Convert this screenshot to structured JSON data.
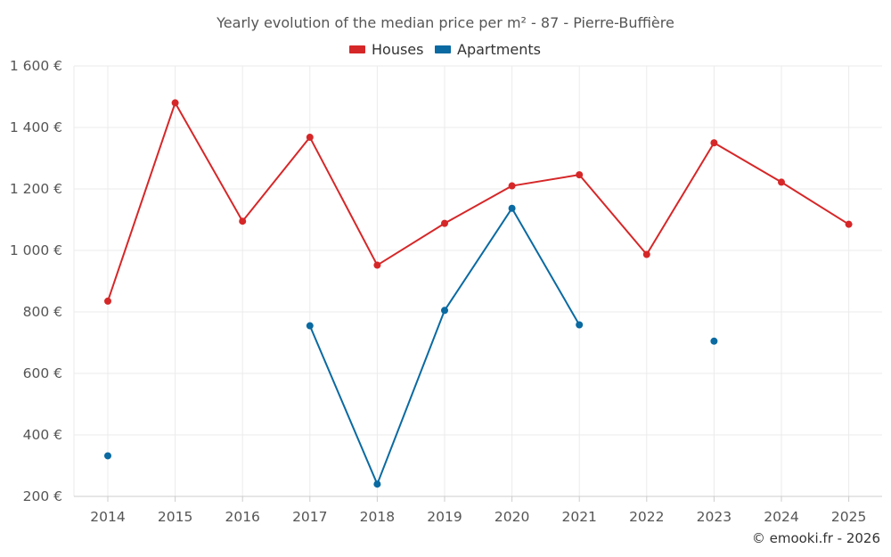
{
  "chart_data": {
    "type": "line",
    "title": "Yearly evolution of the median price per m² - 87 - Pierre-Buffière",
    "categories": [
      "2014",
      "2015",
      "2016",
      "2017",
      "2018",
      "2019",
      "2020",
      "2021",
      "2022",
      "2023",
      "2024",
      "2025"
    ],
    "ylim": [
      200,
      1600
    ],
    "yticks": [
      200,
      400,
      600,
      800,
      1000,
      1200,
      1400,
      1600
    ],
    "ytick_labels": [
      "200 €",
      "400 €",
      "600 €",
      "800 €",
      "1 000 €",
      "1 200 €",
      "1 400 €",
      "1 600 €"
    ],
    "legend_position": "top-center",
    "grid": true,
    "series": [
      {
        "name": "Houses",
        "color": "#d62728",
        "values": [
          835,
          1480,
          1095,
          1368,
          952,
          1088,
          1210,
          1246,
          987,
          1350,
          1222,
          1085
        ]
      },
      {
        "name": "Apartments",
        "color": "#0a6aa1",
        "values": [
          332,
          null,
          null,
          755,
          240,
          805,
          1137,
          758,
          null,
          705,
          null,
          null
        ]
      }
    ]
  },
  "credit": "© emooki.fr - 2026"
}
